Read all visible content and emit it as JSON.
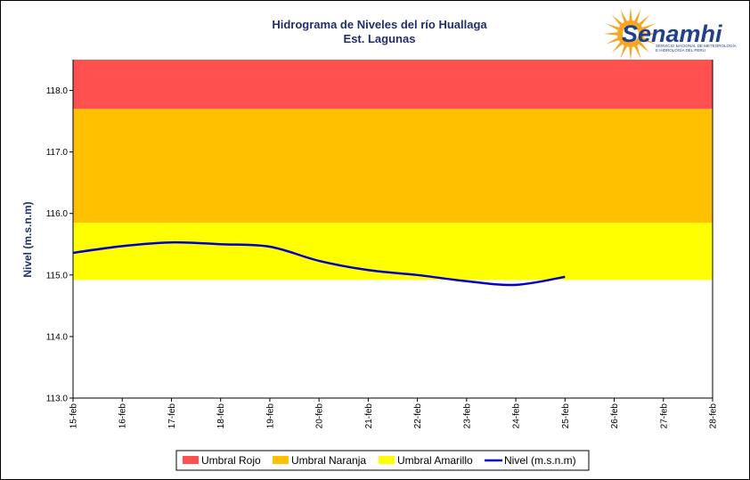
{
  "chart_data": {
    "type": "line",
    "title": "Hidrograma de Niveles del río Huallaga",
    "subtitle": "Est. Lagunas",
    "ylabel": "Nivel (m.s.n.m)",
    "xlabel": "",
    "ylim": [
      113.0,
      118.5
    ],
    "yticks": [
      113.0,
      114.0,
      115.0,
      116.0,
      117.0,
      118.0
    ],
    "ytick_labels": [
      "113.0",
      "114.0",
      "115.0",
      "116.0",
      "117.0",
      "118.0"
    ],
    "categories": [
      "15-feb",
      "16-feb",
      "17-feb",
      "18-feb",
      "19-feb",
      "20-feb",
      "21-feb",
      "22-feb",
      "23-feb",
      "24-feb",
      "25-feb",
      "26-feb",
      "27-feb",
      "28-feb"
    ],
    "bands": [
      {
        "name": "Umbral Amarillo",
        "from": 114.92,
        "to": 115.85,
        "color": "#ffff00"
      },
      {
        "name": "Umbral Naranja",
        "from": 115.85,
        "to": 117.7,
        "color": "#ffc000"
      },
      {
        "name": "Umbral Rojo",
        "from": 117.7,
        "to": 118.5,
        "color": "#ff5050"
      }
    ],
    "series": [
      {
        "name": "Nivel (m.s.n.m)",
        "color": "#0000cc",
        "values": [
          115.36,
          115.47,
          115.53,
          115.5,
          115.46,
          115.23,
          115.08,
          115.0,
          114.9,
          114.84,
          114.97,
          null,
          null,
          null
        ]
      }
    ],
    "legend": [
      "Umbral Rojo",
      "Umbral Naranja",
      "Umbral Amarillo",
      "Nivel (m.s.n.m)"
    ],
    "legend_position": "bottom",
    "grid": false
  },
  "logo": {
    "name": "Senamhi",
    "subtitle_line1": "SERVICIO NACIONAL DE METEOROLOGÍA",
    "subtitle_line2": "E HIDROLOGÍA DEL PERÚ",
    "sun_color": "#f5a623",
    "text_color": "#1f3f8f"
  }
}
